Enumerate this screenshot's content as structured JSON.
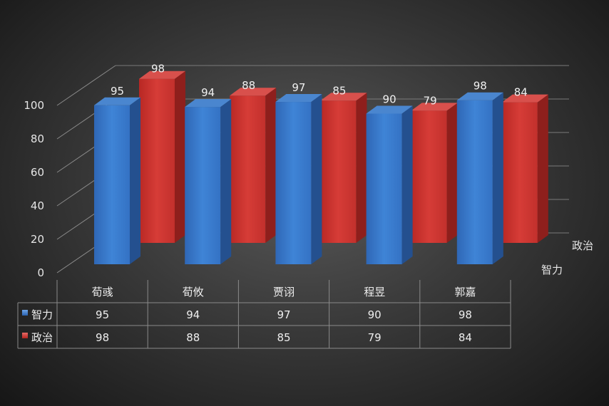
{
  "chart_data": {
    "type": "bar",
    "subtype": "3d-clustered-column-with-data-table",
    "categories": [
      "荀彧",
      "荀攸",
      "贾诩",
      "程昱",
      "郭嘉"
    ],
    "series": [
      {
        "name": "智力",
        "values": [
          95,
          94,
          97,
          90,
          98
        ],
        "color": "#3574c8"
      },
      {
        "name": "政治",
        "values": [
          98,
          88,
          85,
          79,
          84
        ],
        "color": "#c8302c"
      }
    ],
    "ylim": [
      0,
      100
    ],
    "yticks": [
      "0",
      "20",
      "40",
      "60",
      "80",
      "100"
    ],
    "grid": true,
    "data_labels": true,
    "data_table": true,
    "depth_axis_labels": [
      "智力",
      "政治"
    ]
  }
}
